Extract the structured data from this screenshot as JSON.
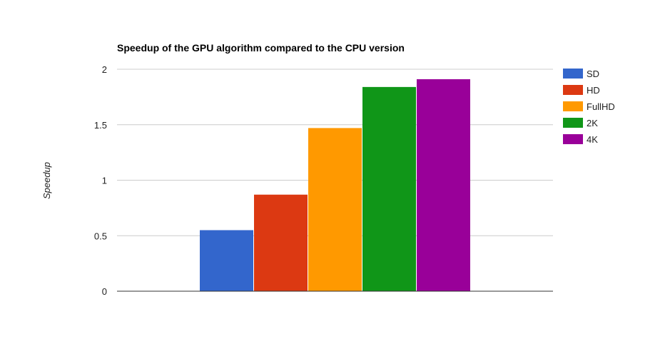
{
  "chart_data": {
    "type": "bar",
    "title": "Speedup of the GPU algorithm compared to the CPU version",
    "xlabel": "",
    "ylabel": "Speedup",
    "ylim": [
      0,
      2
    ],
    "yticks": [
      "0",
      "0.5",
      "1",
      "1.5",
      "2"
    ],
    "grid": true,
    "legend_position": "right",
    "series": [
      {
        "name": "SD",
        "value": 0.55,
        "color": "#3366cc"
      },
      {
        "name": "HD",
        "value": 0.87,
        "color": "#dc3912"
      },
      {
        "name": "FullHD",
        "value": 1.47,
        "color": "#ff9900"
      },
      {
        "name": "2K",
        "value": 1.84,
        "color": "#109618"
      },
      {
        "name": "4K",
        "value": 1.91,
        "color": "#990099"
      }
    ]
  }
}
